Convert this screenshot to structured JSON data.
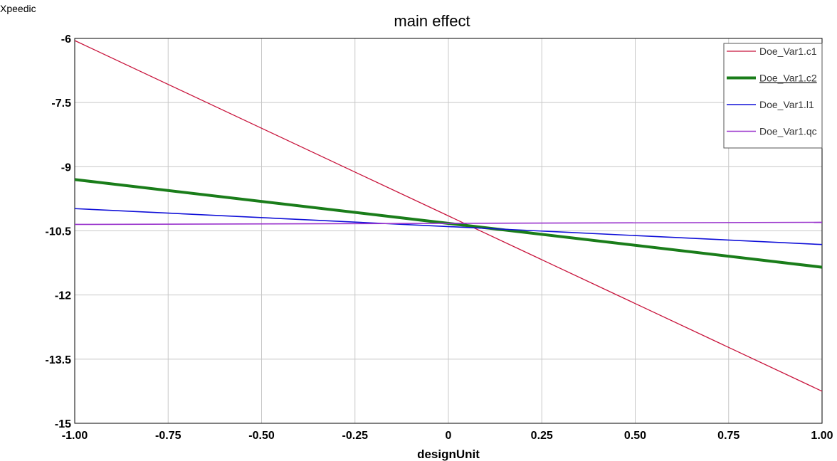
{
  "app": {
    "name": "Xpeedic"
  },
  "chart_data": {
    "type": "line",
    "title": "main effect",
    "xlabel": "designUnit",
    "ylabel": "",
    "xlim": [
      -1.0,
      1.0
    ],
    "ylim": [
      -15,
      -6
    ],
    "xticks": [
      -1.0,
      -0.75,
      -0.5,
      -0.25,
      0,
      0.25,
      0.5,
      0.75,
      1.0
    ],
    "xtick_labels": [
      "-1.00",
      "-0.75",
      "-0.50",
      "-0.25",
      "0",
      "0.25",
      "0.50",
      "0.75",
      "1.00"
    ],
    "yticks": [
      -6,
      -7.5,
      -9,
      -10.5,
      -12,
      -13.5,
      -15
    ],
    "ytick_labels": [
      "-6",
      "-7.5",
      "-9",
      "-10.5",
      "-12",
      "-13.5",
      "-15"
    ],
    "grid": true,
    "legend": {
      "position": "top-right"
    },
    "series": [
      {
        "name": "Doe_Var1.c1",
        "color": "#c8143c",
        "width": 1.3,
        "underline": false,
        "x": [
          -1.0,
          1.0
        ],
        "y": [
          -6.05,
          -14.25
        ]
      },
      {
        "name": "Doe_Var1.c2",
        "color": "#1a7d1a",
        "width": 4,
        "underline": true,
        "x": [
          -1.0,
          1.0
        ],
        "y": [
          -9.3,
          -11.35
        ]
      },
      {
        "name": "Doe_Var1.l1",
        "color": "#1010d8",
        "width": 1.6,
        "underline": false,
        "x": [
          -1.0,
          1.0
        ],
        "y": [
          -9.98,
          -10.82
        ]
      },
      {
        "name": "Doe_Var1.qc",
        "color": "#9933cc",
        "width": 1.6,
        "underline": false,
        "x": [
          -1.0,
          1.0
        ],
        "y": [
          -10.35,
          -10.3
        ]
      }
    ]
  }
}
